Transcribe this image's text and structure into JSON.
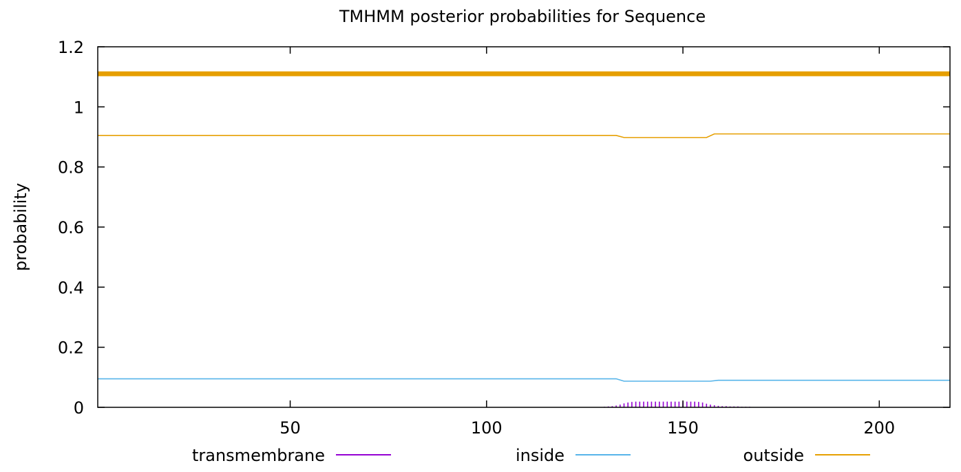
{
  "chart_data": {
    "type": "line",
    "title": "TMHMM posterior probabilities for Sequence",
    "xlabel": "",
    "ylabel": "probability",
    "xlim": [
      1,
      218
    ],
    "ylim": [
      0,
      1.2
    ],
    "x_ticks": [
      50,
      100,
      150,
      200
    ],
    "y_ticks": [
      0,
      0.2,
      0.4,
      0.6,
      0.8,
      1,
      1.2
    ],
    "y_tick_labels": [
      "0",
      "0.2",
      "0.4",
      "0.6",
      "0.8",
      "1",
      "1.2"
    ],
    "grid": false,
    "legend_position": "bottom",
    "series": [
      {
        "name": "transmembrane",
        "style": "impulses",
        "color": "#9400d3",
        "points": [
          [
            130,
            0.002
          ],
          [
            131,
            0.003
          ],
          [
            132,
            0.004
          ],
          [
            133,
            0.006
          ],
          [
            134,
            0.009
          ],
          [
            135,
            0.013
          ],
          [
            136,
            0.016
          ],
          [
            137,
            0.018
          ],
          [
            138,
            0.019
          ],
          [
            139,
            0.019
          ],
          [
            140,
            0.019
          ],
          [
            141,
            0.019
          ],
          [
            142,
            0.019
          ],
          [
            143,
            0.019
          ],
          [
            144,
            0.019
          ],
          [
            145,
            0.019
          ],
          [
            146,
            0.019
          ],
          [
            147,
            0.019
          ],
          [
            148,
            0.019
          ],
          [
            149,
            0.019
          ],
          [
            150,
            0.019
          ],
          [
            151,
            0.019
          ],
          [
            152,
            0.019
          ],
          [
            153,
            0.019
          ],
          [
            154,
            0.018
          ],
          [
            155,
            0.016
          ],
          [
            156,
            0.012
          ],
          [
            157,
            0.009
          ],
          [
            158,
            0.007
          ],
          [
            159,
            0.005
          ],
          [
            160,
            0.004
          ],
          [
            161,
            0.004
          ],
          [
            162,
            0.003
          ],
          [
            163,
            0.003
          ],
          [
            164,
            0.003
          ],
          [
            165,
            0.002
          ],
          [
            166,
            0.002
          ],
          [
            167,
            0.002
          ]
        ]
      },
      {
        "name": "inside",
        "style": "line",
        "color": "#56b4e9",
        "points": [
          [
            1,
            0.095
          ],
          [
            133,
            0.095
          ],
          [
            135,
            0.087
          ],
          [
            157,
            0.087
          ],
          [
            159,
            0.09
          ],
          [
            218,
            0.09
          ]
        ]
      },
      {
        "name": "outside",
        "style": "line",
        "color": "#e69f00",
        "points": [
          [
            1,
            0.905
          ],
          [
            133,
            0.905
          ],
          [
            135,
            0.898
          ],
          [
            156,
            0.898
          ],
          [
            158,
            0.91
          ],
          [
            218,
            0.91
          ]
        ]
      }
    ],
    "annotation_bars": [
      {
        "region": "outside",
        "x_start": 1,
        "x_end": 218,
        "y": 1.11,
        "color": "#e69f00"
      }
    ]
  }
}
